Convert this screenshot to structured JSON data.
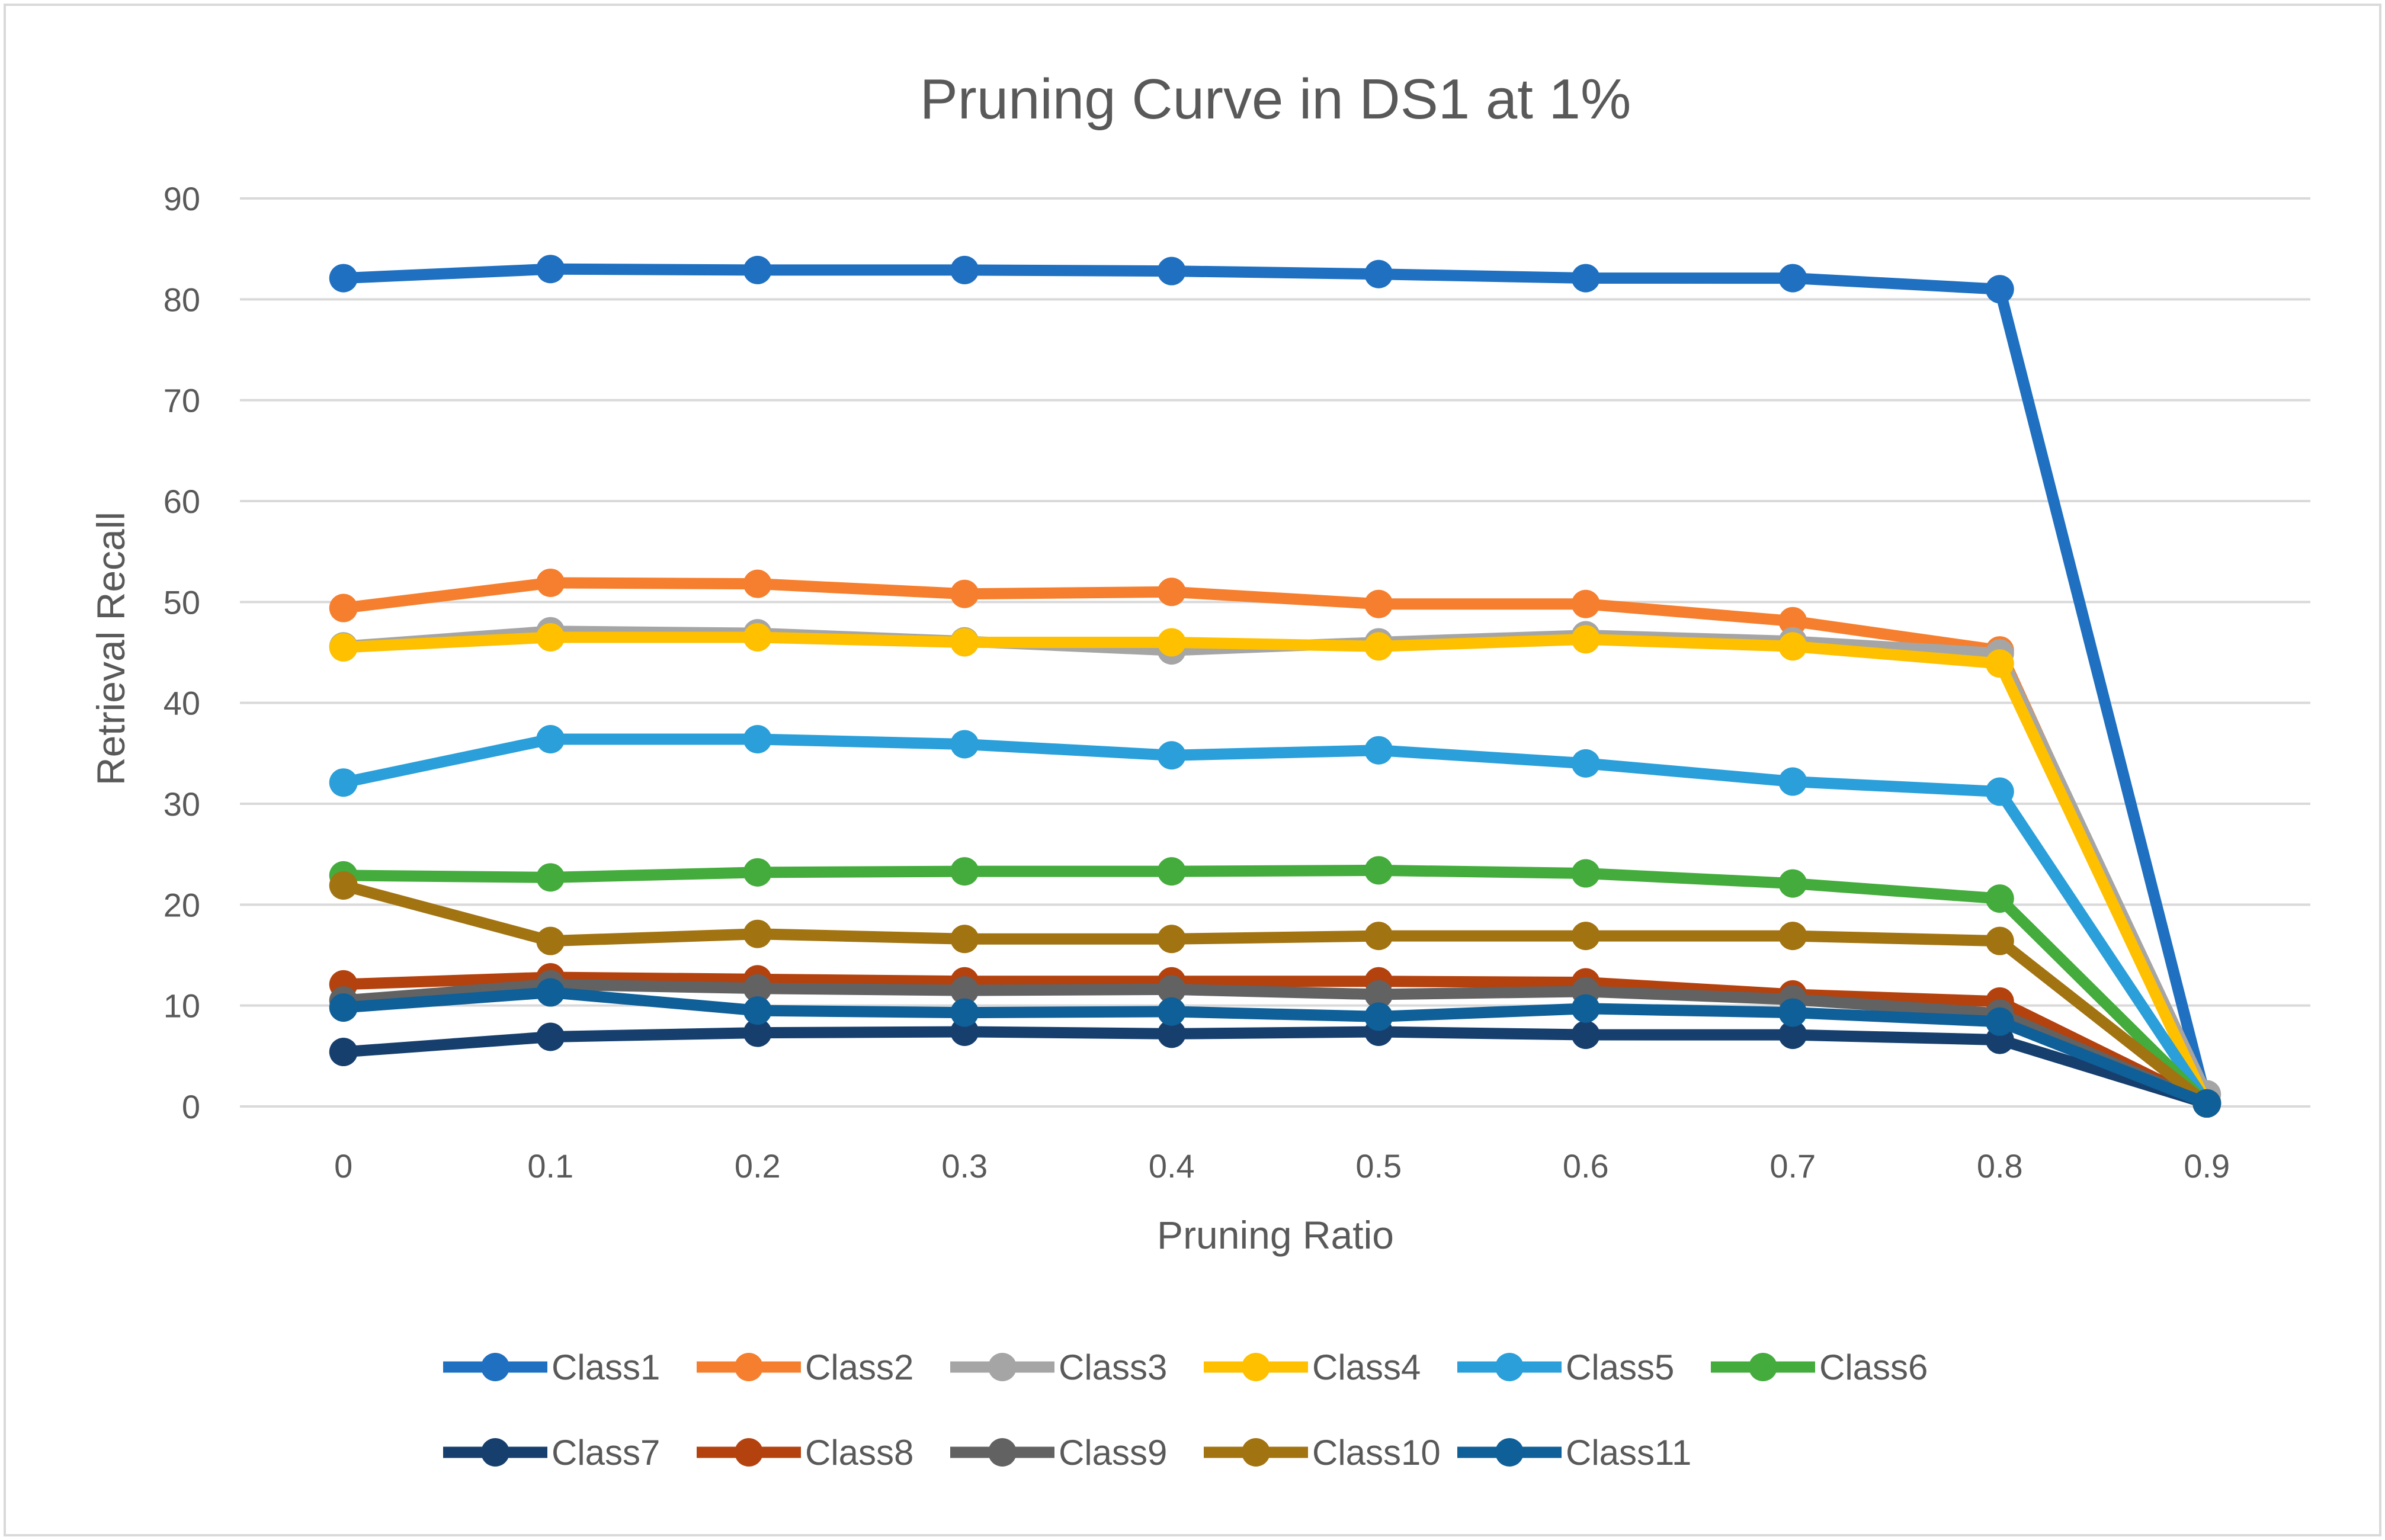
{
  "chart_data": {
    "type": "line",
    "title": "Pruning Curve in DS1 at 1%",
    "xlabel": "Pruning Ratio",
    "ylabel": "Retrieval Recall",
    "ylim": [
      0,
      90
    ],
    "yticks": [
      "0",
      "10",
      "20",
      "30",
      "40",
      "50",
      "60",
      "70",
      "80",
      "90"
    ],
    "categories": [
      "0",
      "0.1",
      "0.2",
      "0.3",
      "0.4",
      "0.5",
      "0.6",
      "0.7",
      "0.8",
      "0.9"
    ],
    "grid": true,
    "legend_position": "bottom",
    "series": [
      {
        "name": "Class1",
        "color": "#1F70C1",
        "values": [
          82.1,
          83.0,
          82.9,
          82.9,
          82.8,
          82.5,
          82.1,
          82.1,
          81.0,
          0.4
        ]
      },
      {
        "name": "Class2",
        "color": "#F57F2E",
        "values": [
          49.4,
          51.9,
          51.8,
          50.8,
          51.0,
          49.8,
          49.8,
          48.1,
          45.2,
          0.3
        ]
      },
      {
        "name": "Class3",
        "color": "#A5A5A5",
        "values": [
          45.6,
          47.1,
          46.9,
          46.1,
          45.2,
          46.0,
          46.7,
          46.1,
          44.9,
          1.2
        ]
      },
      {
        "name": "Class4",
        "color": "#FFC000",
        "values": [
          45.5,
          46.5,
          46.5,
          46.0,
          46.0,
          45.6,
          46.3,
          45.6,
          43.9,
          0.3
        ]
      },
      {
        "name": "Class5",
        "color": "#2A9FD9",
        "values": [
          32.1,
          36.4,
          36.4,
          35.9,
          34.8,
          35.3,
          34.0,
          32.2,
          31.2,
          0.3
        ]
      },
      {
        "name": "Class6",
        "color": "#43AC3C",
        "values": [
          22.9,
          22.7,
          23.2,
          23.3,
          23.3,
          23.4,
          23.1,
          22.1,
          20.6,
          0.3
        ]
      },
      {
        "name": "Class7",
        "color": "#163F6E",
        "values": [
          5.4,
          6.9,
          7.3,
          7.4,
          7.2,
          7.4,
          7.1,
          7.1,
          6.6,
          0.3
        ]
      },
      {
        "name": "Class8",
        "color": "#B3420F",
        "values": [
          12.1,
          12.8,
          12.6,
          12.4,
          12.4,
          12.4,
          12.3,
          11.1,
          10.4,
          0.3
        ]
      },
      {
        "name": "Class9",
        "color": "#626262",
        "values": [
          10.5,
          12.1,
          11.7,
          11.5,
          11.6,
          11.1,
          11.4,
          10.6,
          9.2,
          0.3
        ]
      },
      {
        "name": "Class10",
        "color": "#A27311",
        "values": [
          21.9,
          16.4,
          17.1,
          16.6,
          16.6,
          16.9,
          16.9,
          16.9,
          16.4,
          0.3
        ]
      },
      {
        "name": "Class11",
        "color": "#0F5F98",
        "values": [
          9.8,
          11.3,
          9.5,
          9.3,
          9.4,
          8.9,
          9.7,
          9.3,
          8.4,
          0.3
        ]
      }
    ]
  }
}
